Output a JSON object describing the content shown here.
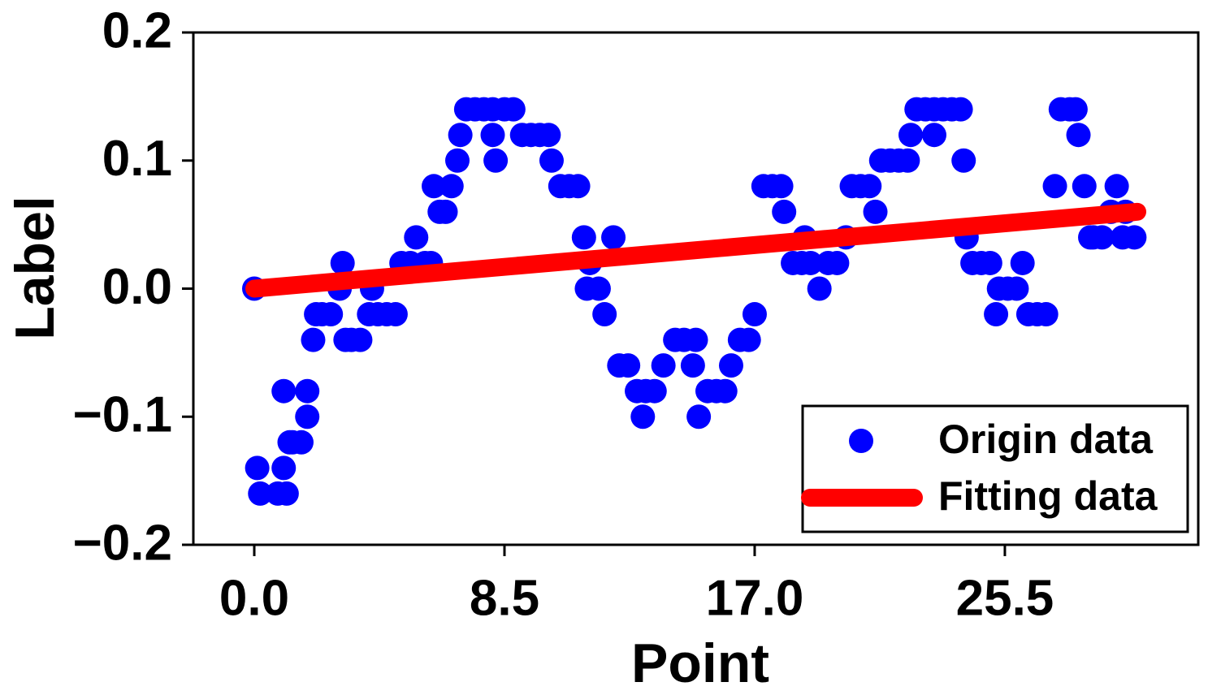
{
  "chart_data": {
    "type": "scatter",
    "xlabel": "Point",
    "ylabel": "Label",
    "xlim": [
      -2.07,
      32.07
    ],
    "ylim": [
      -0.2,
      0.2
    ],
    "xticks": [
      {
        "value": 0,
        "label": "0.0"
      },
      8.5,
      {
        "value": 17,
        "label": "17.0"
      },
      25.5
    ],
    "yticks": [
      {
        "value": -0.2,
        "label": "−0.2"
      },
      {
        "value": -0.1,
        "label": "−0.1"
      },
      {
        "value": 0,
        "label": "0.0"
      },
      0.1,
      0.2
    ],
    "legend": "lower right",
    "series": [
      {
        "name": "Origin data",
        "type": "scatter",
        "color": "#0000ff",
        "x": [
          0,
          0.1,
          0.2,
          0.8,
          1.0,
          1.0,
          1.1,
          1.2,
          1.3,
          1.6,
          1.8,
          1.8,
          2.0,
          2.1,
          2.3,
          2.6,
          2.9,
          3.0,
          3.1,
          3.3,
          3.6,
          3.9,
          4.0,
          4.2,
          4.5,
          4.8,
          5.0,
          5.3,
          5.5,
          5.8,
          6.0,
          6.1,
          6.3,
          6.5,
          6.7,
          6.9,
          7.0,
          7.2,
          7.5,
          7.8,
          8.1,
          8.1,
          8.2,
          8.5,
          8.8,
          9.1,
          9.4,
          9.7,
          10.0,
          10.1,
          10.4,
          10.7,
          11.0,
          11.2,
          11.3,
          11.4,
          11.7,
          11.9,
          12.2,
          12.4,
          12.7,
          13.0,
          13.2,
          13.3,
          13.6,
          13.9,
          14.3,
          14.6,
          14.9,
          15.0,
          15.1,
          15.4,
          15.7,
          16.0,
          16.2,
          16.5,
          16.8,
          17.0,
          17.3,
          17.6,
          17.9,
          18.0,
          18.3,
          18.6,
          18.7,
          18.9,
          19.2,
          19.5,
          19.8,
          20.1,
          20.3,
          20.6,
          20.9,
          21.1,
          21.3,
          21.6,
          21.9,
          22.2,
          22.3,
          22.5,
          22.8,
          23.1,
          23.1,
          23.4,
          23.7,
          24.0,
          24.1,
          24.2,
          24.4,
          24.7,
          25.0,
          25.2,
          25.3,
          25.6,
          25.9,
          26.1,
          26.3,
          26.6,
          26.9,
          27.2,
          27.4,
          27.7,
          27.9,
          28.0,
          28.2,
          28.4,
          28.5,
          28.8,
          29.1,
          29.3,
          29.5,
          29.6,
          29.9
        ],
        "values": [
          0,
          -0.14,
          -0.16,
          -0.16,
          -0.08,
          -0.14,
          -0.16,
          -0.12,
          -0.12,
          -0.12,
          -0.1,
          -0.08,
          -0.04,
          -0.02,
          -0.02,
          -0.02,
          0,
          0.02,
          -0.04,
          -0.04,
          -0.04,
          -0.02,
          0,
          -0.02,
          -0.02,
          -0.02,
          0.02,
          0.02,
          0.04,
          0.02,
          0.02,
          0.08,
          0.06,
          0.06,
          0.08,
          0.1,
          0.12,
          0.14,
          0.14,
          0.14,
          0.12,
          0.14,
          0.1,
          0.14,
          0.14,
          0.12,
          0.12,
          0.12,
          0.12,
          0.1,
          0.08,
          0.08,
          0.08,
          0.04,
          0,
          0.02,
          0,
          -0.02,
          0.04,
          -0.06,
          -0.06,
          -0.08,
          -0.1,
          -0.08,
          -0.08,
          -0.06,
          -0.04,
          -0.04,
          -0.06,
          -0.04,
          -0.1,
          -0.08,
          -0.08,
          -0.08,
          -0.06,
          -0.04,
          -0.04,
          -0.02,
          0.08,
          0.08,
          0.08,
          0.06,
          0.02,
          0.02,
          0.04,
          0.02,
          0,
          0.02,
          0.02,
          0.04,
          0.08,
          0.08,
          0.08,
          0.06,
          0.1,
          0.1,
          0.1,
          0.1,
          0.12,
          0.14,
          0.14,
          0.12,
          0.14,
          0.14,
          0.14,
          0.14,
          0.1,
          0.04,
          0.02,
          0.02,
          0.02,
          -0.02,
          0,
          0,
          0,
          0.02,
          -0.02,
          -0.02,
          -0.02,
          0.08,
          0.14,
          0.14,
          0.14,
          0.12,
          0.08,
          0.04,
          0.04,
          0.04,
          0.06,
          0.08,
          0.04,
          0.06,
          0.04
        ]
      },
      {
        "name": "Fitting data",
        "type": "line",
        "color": "#ff0000",
        "x": [
          0,
          30
        ],
        "values": [
          0,
          0.06
        ]
      }
    ]
  }
}
